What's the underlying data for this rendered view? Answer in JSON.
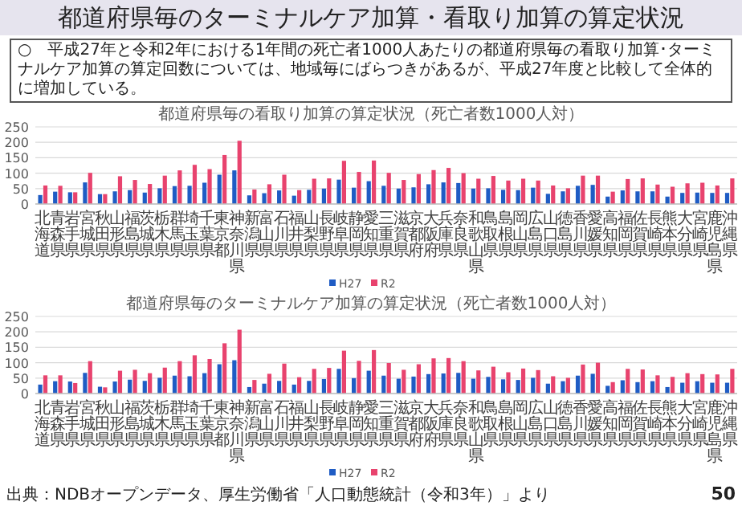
{
  "chart_data": [
    {
      "type": "bar",
      "title": "都道府県毎の看取り加算の算定状況（死亡者数1000人対）",
      "annotations": [
        "都道府県毎のターミナルケア加算・看取り加算の算定状況",
        "○　平成27年と令和2年における1年間の死亡者1000人あたりの都道府県毎の看取り加算･ターミナルケア加算の算定回数については、地域毎にばらつきがあるが、平成27年度と比較して全体的に増加している。"
      ],
      "categories": [
        "北海道",
        "青森県",
        "岩手県",
        "宮城県",
        "秋田県",
        "山形県",
        "福島県",
        "茨城県",
        "栃木県",
        "群馬県",
        "埼玉県",
        "千葉県",
        "東京都",
        "神奈川県",
        "新潟県",
        "富山県",
        "石川県",
        "福井県",
        "山梨県",
        "長野県",
        "岐阜県",
        "静岡県",
        "愛知県",
        "三重県",
        "滋賀県",
        "京都府",
        "大阪府",
        "兵庫県",
        "奈良県",
        "和歌山県",
        "鳥取県",
        "島根県",
        "岡山県",
        "広島県",
        "山口県",
        "徳島県",
        "香川県",
        "愛媛県",
        "高知県",
        "福岡県",
        "佐賀県",
        "長崎県",
        "熊本県",
        "大分県",
        "宮崎県",
        "鹿児島県",
        "沖縄県"
      ],
      "series": [
        {
          "name": "H27",
          "color": "#1f5cc4",
          "values": [
            29,
            40,
            38,
            70,
            32,
            41,
            45,
            37,
            51,
            58,
            59,
            69,
            95,
            109,
            28,
            35,
            44,
            27,
            46,
            50,
            79,
            53,
            74,
            59,
            50,
            54,
            64,
            70,
            68,
            50,
            51,
            46,
            45,
            53,
            33,
            41,
            59,
            62,
            24,
            44,
            41,
            41,
            24,
            36,
            37,
            36,
            36
          ]
        },
        {
          "name": "R2",
          "color": "#e8436e",
          "values": [
            60,
            59,
            38,
            101,
            32,
            90,
            78,
            65,
            92,
            109,
            127,
            113,
            159,
            205,
            47,
            64,
            95,
            45,
            82,
            83,
            140,
            104,
            141,
            101,
            78,
            97,
            110,
            117,
            100,
            82,
            91,
            76,
            82,
            76,
            60,
            51,
            92,
            92,
            40,
            81,
            83,
            63,
            56,
            67,
            69,
            60,
            83
          ]
        }
      ],
      "ylim": [
        0,
        250
      ],
      "yticks": [
        0,
        50,
        100,
        150,
        200,
        250
      ],
      "grid": "y",
      "legend": "bottom"
    },
    {
      "type": "bar",
      "title": "都道府県毎のターミナルケア加算の算定状況（死亡者数1000人対）",
      "annotations": [
        "出典：NDBオープンデータ、厚生労働省「人口動態統計（令和3年）」より",
        "50"
      ],
      "categories": [
        "北海道",
        "青森県",
        "岩手県",
        "宮城県",
        "秋田県",
        "山形県",
        "福島県",
        "茨城県",
        "栃木県",
        "群馬県",
        "埼玉県",
        "千葉県",
        "東京都",
        "神奈川県",
        "新潟県",
        "富山県",
        "石川県",
        "福井県",
        "山梨県",
        "長野県",
        "岐阜県",
        "静岡県",
        "愛知県",
        "三重県",
        "滋賀県",
        "京都府",
        "大阪府",
        "兵庫県",
        "奈良県",
        "和歌山県",
        "鳥取県",
        "島根県",
        "岡山県",
        "広島県",
        "山口県",
        "徳島県",
        "香川県",
        "愛媛県",
        "高知県",
        "福岡県",
        "佐賀県",
        "長崎県",
        "熊本県",
        "大分県",
        "宮崎県",
        "鹿児島県",
        "沖縄県"
      ],
      "series": [
        {
          "name": "H27",
          "color": "#1f5cc4",
          "values": [
            29,
            40,
            39,
            67,
            22,
            39,
            45,
            41,
            51,
            58,
            56,
            66,
            95,
            108,
            21,
            32,
            41,
            29,
            41,
            47,
            80,
            50,
            74,
            58,
            48,
            55,
            63,
            65,
            67,
            48,
            54,
            46,
            44,
            51,
            32,
            40,
            58,
            64,
            25,
            43,
            37,
            40,
            21,
            35,
            40,
            35,
            35
          ]
        },
        {
          "name": "R2",
          "color": "#e8436e",
          "values": [
            59,
            59,
            34,
            105,
            20,
            74,
            77,
            66,
            84,
            105,
            124,
            112,
            163,
            207,
            44,
            64,
            97,
            53,
            80,
            83,
            139,
            106,
            141,
            99,
            77,
            95,
            114,
            115,
            105,
            75,
            87,
            69,
            81,
            76,
            56,
            51,
            94,
            100,
            37,
            80,
            78,
            59,
            54,
            66,
            63,
            62,
            80
          ]
        }
      ],
      "ylim": [
        0,
        250
      ],
      "yticks": [
        0,
        50,
        100,
        150,
        200,
        250
      ],
      "grid": "y",
      "legend": "bottom"
    }
  ]
}
